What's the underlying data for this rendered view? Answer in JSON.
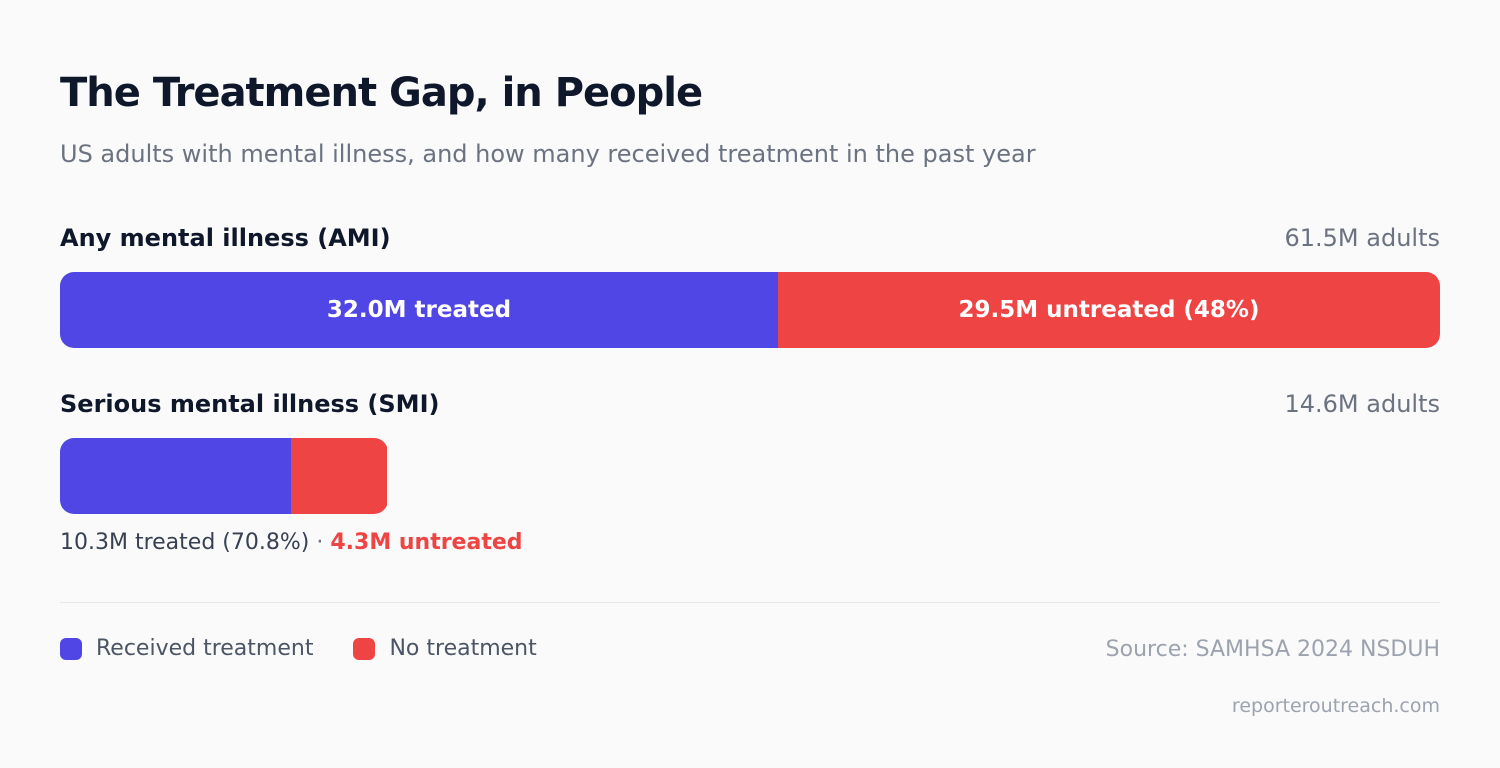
{
  "title": "The Treatment Gap, in People",
  "subtitle": "US adults with mental illness, and how many received treatment in the past year",
  "colors": {
    "treated": "#4f46e5",
    "untreated": "#ef4444"
  },
  "chart_data": {
    "type": "bar",
    "orientation": "horizontal",
    "stacked": true,
    "unit": "million adults",
    "scale_max": 61.5,
    "rows": [
      {
        "label": "Any mental illness (AMI)",
        "total_label": "61.5M adults",
        "total": 61.5,
        "treated": 32.0,
        "untreated": 29.5,
        "treated_label": "32.0M treated",
        "untreated_label": "29.5M untreated (48%)"
      },
      {
        "label": "Serious mental illness (SMI)",
        "total_label": "14.6M adults",
        "total": 14.6,
        "treated": 10.3,
        "untreated": 4.3,
        "caption_treated": "10.3M treated (70.8%)",
        "caption_separator": "·",
        "caption_untreated": "4.3M untreated"
      }
    ],
    "legend": [
      {
        "label": "Received treatment",
        "series": "treated"
      },
      {
        "label": "No treatment",
        "series": "untreated"
      }
    ],
    "legend_placement": "bottom-left"
  },
  "footer": {
    "source": "Source: SAMHSA 2024 NSDUH",
    "watermark": "reporteroutreach.com"
  }
}
